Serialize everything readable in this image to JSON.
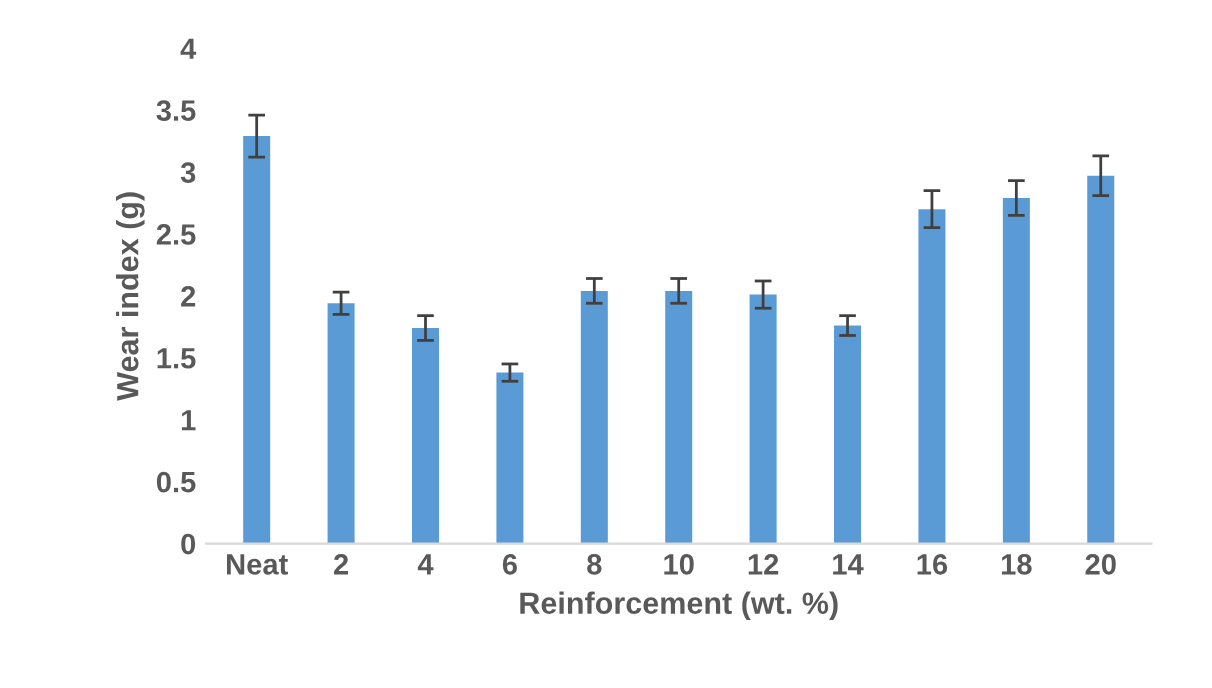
{
  "chart_data": {
    "type": "bar",
    "xlabel": "Reinforcement (wt. %)",
    "ylabel": "Wear index (g)",
    "categories": [
      "Neat",
      "2",
      "4",
      "6",
      "8",
      "10",
      "12",
      "14",
      "16",
      "18",
      "20"
    ],
    "values": [
      3.29,
      1.94,
      1.74,
      1.38,
      2.04,
      2.04,
      2.01,
      1.76,
      2.7,
      2.79,
      2.97
    ],
    "errors": [
      0.17,
      0.09,
      0.1,
      0.07,
      0.1,
      0.1,
      0.11,
      0.08,
      0.15,
      0.14,
      0.16
    ],
    "color": "#5b9bd5",
    "ylim": [
      0,
      4
    ],
    "yticks": [
      0,
      {
        "value": 0.5,
        "label": "0.5"
      },
      1,
      {
        "value": 1.5,
        "label": "1.5"
      },
      2,
      {
        "value": 2.5,
        "label": "2.5"
      },
      3,
      {
        "value": 3.5,
        "label": "3.5"
      },
      4
    ],
    "grid": false
  }
}
